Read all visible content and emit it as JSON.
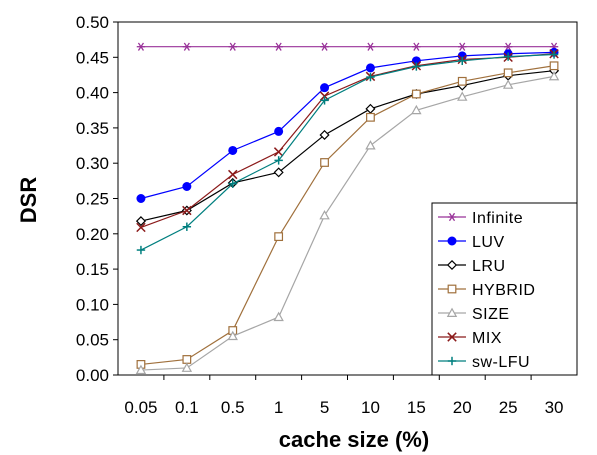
{
  "chart_data": {
    "type": "line",
    "title": "",
    "xlabel": "cache size (%)",
    "ylabel": "DSR",
    "x_scale": "categorical",
    "categories": [
      "0.05",
      "0.1",
      "0.5",
      "1",
      "5",
      "10",
      "15",
      "20",
      "25",
      "30"
    ],
    "ylim": [
      0,
      0.5
    ],
    "y_ticks": [
      "0.00",
      "0.05",
      "0.10",
      "0.15",
      "0.20",
      "0.25",
      "0.30",
      "0.35",
      "0.40",
      "0.45",
      "0.50"
    ],
    "grid": false,
    "legend_position": "bottom-right",
    "series": [
      {
        "name": "Infinite",
        "color": "#993399",
        "marker": "asterisk",
        "values": [
          0.465,
          0.465,
          0.465,
          0.465,
          0.465,
          0.465,
          0.465,
          0.465,
          0.465,
          0.465
        ]
      },
      {
        "name": "LUV",
        "color": "#0000ff",
        "marker": "filled-circle",
        "values": [
          0.25,
          0.267,
          0.318,
          0.345,
          0.407,
          0.435,
          0.445,
          0.452,
          0.455,
          0.457
        ]
      },
      {
        "name": "LRU",
        "color": "#000000",
        "marker": "diamond",
        "values": [
          0.218,
          0.233,
          0.272,
          0.287,
          0.34,
          0.377,
          0.398,
          0.41,
          0.424,
          0.431
        ]
      },
      {
        "name": "HYBRID",
        "color": "#a0703c",
        "marker": "square",
        "values": [
          0.015,
          0.022,
          0.063,
          0.196,
          0.301,
          0.365,
          0.398,
          0.416,
          0.428,
          0.438
        ]
      },
      {
        "name": "SIZE",
        "color": "#a6a6a6",
        "marker": "triangle",
        "values": [
          0.007,
          0.01,
          0.055,
          0.082,
          0.226,
          0.325,
          0.375,
          0.394,
          0.411,
          0.423
        ]
      },
      {
        "name": "MIX",
        "color": "#8b1a1a",
        "marker": "x",
        "values": [
          0.209,
          0.233,
          0.284,
          0.316,
          0.395,
          0.423,
          0.438,
          0.447,
          0.45,
          0.455
        ]
      },
      {
        "name": "sw-LFU",
        "color": "#007f7f",
        "marker": "plus",
        "values": [
          0.177,
          0.21,
          0.271,
          0.304,
          0.389,
          0.422,
          0.437,
          0.445,
          0.451,
          0.454
        ]
      }
    ]
  }
}
